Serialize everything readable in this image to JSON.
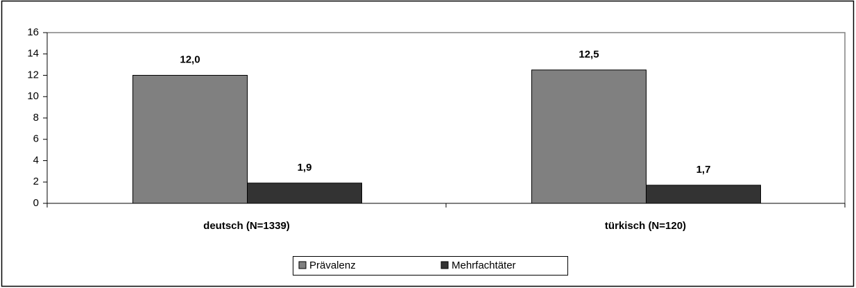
{
  "chart_data": {
    "type": "bar",
    "categories": [
      "deutsch (N=1339)",
      "türkisch (N=120)"
    ],
    "series": [
      {
        "name": "Prävalenz",
        "color": "#808080",
        "values": [
          12.0,
          12.5
        ],
        "value_labels": [
          "12,0",
          "12,5"
        ]
      },
      {
        "name": "Mehrfachtäter",
        "color": "#333333",
        "values": [
          1.9,
          1.7
        ],
        "value_labels": [
          "1,9",
          "1,7"
        ]
      }
    ],
    "ylim": [
      0,
      16
    ],
    "yticks": [
      0,
      2,
      4,
      6,
      8,
      10,
      12,
      14,
      16
    ],
    "grid": false,
    "legend": "bottom"
  }
}
